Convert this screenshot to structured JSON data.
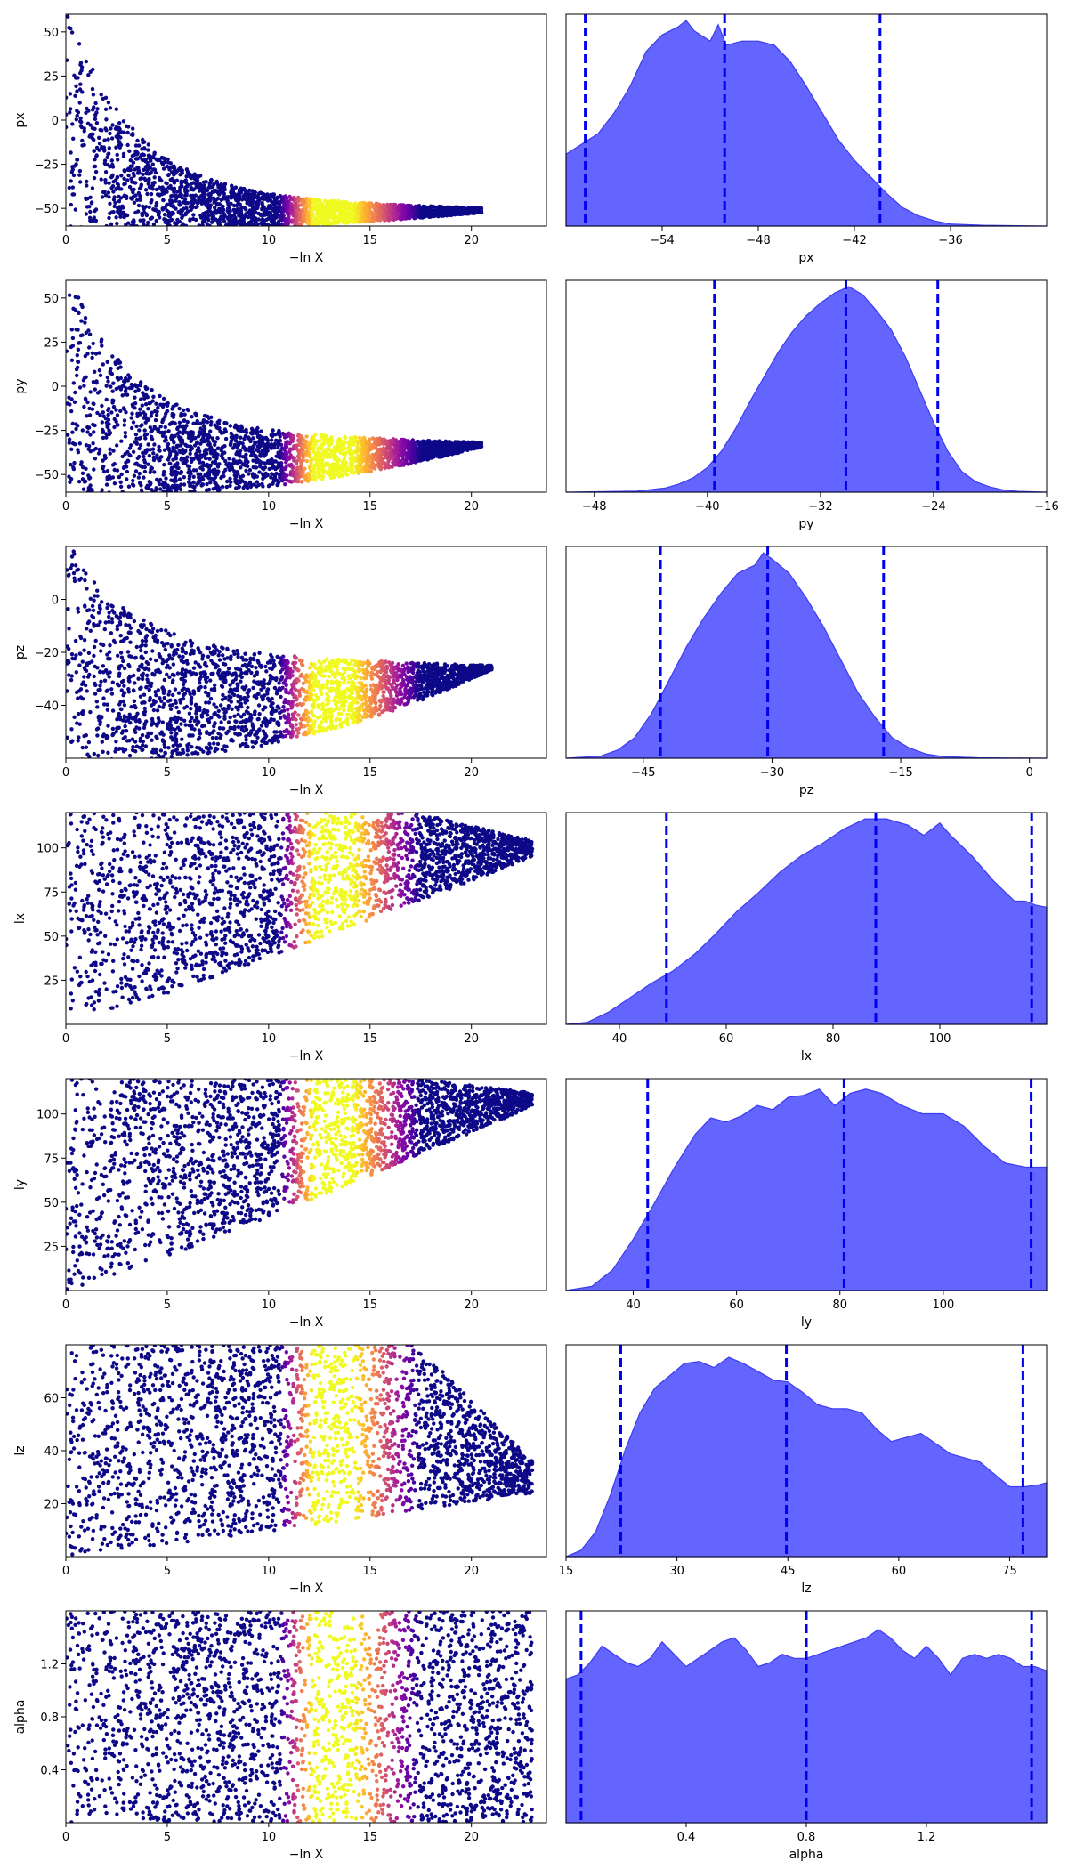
{
  "figure": {
    "xlabel_left": "−ln X"
  },
  "chart_data": [
    {
      "type": "scatter",
      "variable": "px",
      "xlabel": "−ln X",
      "ylabel": "px",
      "xlim": [
        0,
        23.7
      ],
      "ylim": [
        -60,
        60
      ],
      "xticks": [
        0,
        5,
        10,
        15,
        20
      ],
      "yticks": [
        50,
        25,
        0,
        -25,
        -50
      ],
      "ytick_labels": [
        "50",
        "25",
        "0",
        "−25",
        "−50"
      ],
      "colormap": "plasma",
      "points_shape": {
        "top_left": 60,
        "converge_x": 20.5,
        "converge_y": -50
      }
    },
    {
      "type": "area",
      "variable": "px",
      "xlabel": "px",
      "xlim": [
        -60,
        -30
      ],
      "xticks": [
        -54,
        -48,
        -42,
        -36
      ],
      "xtick_labels": [
        "−54",
        "−48",
        "−42",
        "−36"
      ],
      "quantile_lines": [
        -58.8,
        -50.1,
        -40.4
      ],
      "density": [
        [
          -60,
          0.35
        ],
        [
          -59,
          0.4
        ],
        [
          -58,
          0.45
        ],
        [
          -57,
          0.55
        ],
        [
          -56,
          0.68
        ],
        [
          -55,
          0.85
        ],
        [
          -54,
          0.93
        ],
        [
          -53,
          0.97
        ],
        [
          -52.5,
          1.0
        ],
        [
          -52,
          0.95
        ],
        [
          -51,
          0.9
        ],
        [
          -50.5,
          0.98
        ],
        [
          -50,
          0.88
        ],
        [
          -49,
          0.9
        ],
        [
          -48,
          0.9
        ],
        [
          -47,
          0.88
        ],
        [
          -46,
          0.8
        ],
        [
          -45,
          0.68
        ],
        [
          -44,
          0.55
        ],
        [
          -43,
          0.42
        ],
        [
          -42,
          0.32
        ],
        [
          -41,
          0.24
        ],
        [
          -40,
          0.16
        ],
        [
          -39,
          0.09
        ],
        [
          -38,
          0.05
        ],
        [
          -37,
          0.025
        ],
        [
          -36,
          0.01
        ],
        [
          -34,
          0.004
        ],
        [
          -30,
          0
        ]
      ]
    },
    {
      "type": "scatter",
      "variable": "py",
      "xlabel": "−ln X",
      "ylabel": "py",
      "xlim": [
        0,
        23.7
      ],
      "ylim": [
        -60,
        60
      ],
      "xticks": [
        0,
        5,
        10,
        15,
        20
      ],
      "yticks": [
        50,
        25,
        0,
        -25,
        -50
      ],
      "ytick_labels": [
        "50",
        "25",
        "0",
        "−25",
        "−50"
      ],
      "colormap": "plasma",
      "points_shape": {
        "top_left": 60,
        "converge_x": 20.5,
        "converge_y": -32
      }
    },
    {
      "type": "area",
      "variable": "py",
      "xlabel": "py",
      "xlim": [
        -50,
        -16
      ],
      "xticks": [
        -48,
        -40,
        -32,
        -24,
        -16
      ],
      "xtick_labels": [
        "−48",
        "−40",
        "−32",
        "−24",
        "−16"
      ],
      "quantile_lines": [
        -39.5,
        -30.2,
        -23.7
      ],
      "density": [
        [
          -50,
          0
        ],
        [
          -45,
          0.005
        ],
        [
          -43,
          0.02
        ],
        [
          -42,
          0.04
        ],
        [
          -41,
          0.07
        ],
        [
          -40,
          0.12
        ],
        [
          -39,
          0.2
        ],
        [
          -38,
          0.31
        ],
        [
          -37,
          0.44
        ],
        [
          -36,
          0.56
        ],
        [
          -35,
          0.68
        ],
        [
          -34,
          0.78
        ],
        [
          -33,
          0.86
        ],
        [
          -32,
          0.92
        ],
        [
          -31,
          0.97
        ],
        [
          -30,
          1.0
        ],
        [
          -29,
          0.96
        ],
        [
          -28,
          0.88
        ],
        [
          -27,
          0.79
        ],
        [
          -26,
          0.66
        ],
        [
          -25,
          0.5
        ],
        [
          -24,
          0.34
        ],
        [
          -23,
          0.2
        ],
        [
          -22,
          0.1
        ],
        [
          -21,
          0.05
        ],
        [
          -20,
          0.025
        ],
        [
          -19,
          0.01
        ],
        [
          -18,
          0.004
        ],
        [
          -16,
          0
        ]
      ]
    },
    {
      "type": "scatter",
      "variable": "pz",
      "xlabel": "−ln X",
      "ylabel": "pz",
      "xlim": [
        0,
        23.7
      ],
      "ylim": [
        -60,
        20
      ],
      "xticks": [
        0,
        5,
        10,
        15,
        20
      ],
      "yticks": [
        0,
        -20,
        -40
      ],
      "ytick_labels": [
        "0",
        "−20",
        "−40"
      ],
      "colormap": "plasma",
      "points_shape": {
        "top_left": 20,
        "converge_x": 21,
        "converge_y": -25
      }
    },
    {
      "type": "area",
      "variable": "pz",
      "xlabel": "pz",
      "xlim": [
        -54,
        2
      ],
      "xticks": [
        -45,
        -30,
        -15,
        0
      ],
      "xtick_labels": [
        "−45",
        "−30",
        "−15",
        "0"
      ],
      "quantile_lines": [
        -43.0,
        -30.5,
        -17.0
      ],
      "density": [
        [
          -54,
          0
        ],
        [
          -50,
          0.01
        ],
        [
          -48,
          0.04
        ],
        [
          -46,
          0.1
        ],
        [
          -44,
          0.22
        ],
        [
          -42,
          0.38
        ],
        [
          -40,
          0.54
        ],
        [
          -38,
          0.68
        ],
        [
          -36,
          0.8
        ],
        [
          -34,
          0.9
        ],
        [
          -32,
          0.94
        ],
        [
          -31,
          1.0
        ],
        [
          -30,
          0.97
        ],
        [
          -28,
          0.9
        ],
        [
          -26,
          0.78
        ],
        [
          -24,
          0.64
        ],
        [
          -22,
          0.48
        ],
        [
          -20,
          0.32
        ],
        [
          -18,
          0.2
        ],
        [
          -16,
          0.1
        ],
        [
          -14,
          0.05
        ],
        [
          -12,
          0.02
        ],
        [
          -10,
          0.008
        ],
        [
          -6,
          0.002
        ],
        [
          2,
          0
        ]
      ]
    },
    {
      "type": "scatter",
      "variable": "lx",
      "xlabel": "−ln X",
      "ylabel": "lx",
      "xlim": [
        0,
        23.7
      ],
      "ylim": [
        0,
        120
      ],
      "xticks": [
        0,
        5,
        10,
        15,
        20
      ],
      "yticks": [
        100,
        75,
        50,
        25
      ],
      "ytick_labels": [
        "100",
        "75",
        "50",
        "25"
      ],
      "colormap": "plasma",
      "points_shape": {
        "converge_x": 23,
        "converge_y": 100,
        "bottom_edge": "rising"
      }
    },
    {
      "type": "area",
      "variable": "lx",
      "xlabel": "lx",
      "xlim": [
        30,
        120
      ],
      "xticks": [
        40,
        60,
        80,
        100
      ],
      "xtick_labels": [
        "40",
        "60",
        "80",
        "100"
      ],
      "quantile_lines": [
        48.8,
        88.0,
        117.2
      ],
      "density": [
        [
          30,
          0
        ],
        [
          34,
          0.01
        ],
        [
          38,
          0.06
        ],
        [
          42,
          0.13
        ],
        [
          46,
          0.2
        ],
        [
          50,
          0.26
        ],
        [
          54,
          0.34
        ],
        [
          58,
          0.44
        ],
        [
          62,
          0.55
        ],
        [
          66,
          0.64
        ],
        [
          70,
          0.74
        ],
        [
          74,
          0.82
        ],
        [
          78,
          0.88
        ],
        [
          82,
          0.95
        ],
        [
          86,
          1.0
        ],
        [
          90,
          1.0
        ],
        [
          94,
          0.97
        ],
        [
          97,
          0.92
        ],
        [
          100,
          0.98
        ],
        [
          102,
          0.92
        ],
        [
          106,
          0.82
        ],
        [
          110,
          0.7
        ],
        [
          114,
          0.6
        ],
        [
          116,
          0.6
        ],
        [
          118,
          0.58
        ],
        [
          120,
          0.57
        ]
      ]
    },
    {
      "type": "scatter",
      "variable": "ly",
      "xlabel": "−ln X",
      "ylabel": "ly",
      "xlim": [
        0,
        23.7
      ],
      "ylim": [
        0,
        120
      ],
      "xticks": [
        0,
        5,
        10,
        15,
        20
      ],
      "yticks": [
        100,
        75,
        50,
        25
      ],
      "ytick_labels": [
        "100",
        "75",
        "50",
        "25"
      ],
      "colormap": "plasma",
      "points_shape": {
        "converge_x": 23,
        "converge_y": 110,
        "bottom_edge": "rising"
      }
    },
    {
      "type": "area",
      "variable": "ly",
      "xlabel": "ly",
      "xlim": [
        27,
        120
      ],
      "xticks": [
        40,
        60,
        80,
        100
      ],
      "xtick_labels": [
        "40",
        "60",
        "80",
        "100"
      ],
      "quantile_lines": [
        42.8,
        80.8,
        117.0
      ],
      "density": [
        [
          27,
          0
        ],
        [
          32,
          0.02
        ],
        [
          36,
          0.1
        ],
        [
          40,
          0.25
        ],
        [
          44,
          0.42
        ],
        [
          48,
          0.6
        ],
        [
          52,
          0.76
        ],
        [
          55,
          0.84
        ],
        [
          58,
          0.82
        ],
        [
          61,
          0.85
        ],
        [
          64,
          0.9
        ],
        [
          67,
          0.88
        ],
        [
          70,
          0.94
        ],
        [
          73,
          0.95
        ],
        [
          76,
          0.98
        ],
        [
          79,
          0.9
        ],
        [
          82,
          0.96
        ],
        [
          85,
          0.98
        ],
        [
          88,
          0.96
        ],
        [
          92,
          0.9
        ],
        [
          96,
          0.86
        ],
        [
          100,
          0.86
        ],
        [
          104,
          0.8
        ],
        [
          108,
          0.7
        ],
        [
          112,
          0.62
        ],
        [
          116,
          0.6
        ],
        [
          120,
          0.6
        ]
      ]
    },
    {
      "type": "scatter",
      "variable": "lz",
      "xlabel": "−ln X",
      "ylabel": "lz",
      "xlim": [
        0,
        23.7
      ],
      "ylim": [
        0,
        80
      ],
      "xticks": [
        0,
        5,
        10,
        15,
        20
      ],
      "yticks": [
        60,
        40,
        20
      ],
      "ytick_labels": [
        "60",
        "40",
        "20"
      ],
      "colormap": "plasma",
      "points_shape": {
        "converge_x": 23,
        "converge_y": 25,
        "bottom_edge": "rising"
      }
    },
    {
      "type": "area",
      "variable": "lz",
      "xlabel": "lz",
      "xlim": [
        15,
        80
      ],
      "xticks": [
        15,
        30,
        45,
        60,
        75
      ],
      "xtick_labels": [
        "15",
        "30",
        "45",
        "60",
        "75"
      ],
      "quantile_lines": [
        22.4,
        44.8,
        76.8
      ],
      "density": [
        [
          15,
          0
        ],
        [
          17,
          0.03
        ],
        [
          19,
          0.12
        ],
        [
          21,
          0.3
        ],
        [
          23,
          0.52
        ],
        [
          25,
          0.7
        ],
        [
          27,
          0.82
        ],
        [
          29,
          0.88
        ],
        [
          31,
          0.94
        ],
        [
          33,
          0.95
        ],
        [
          35,
          0.92
        ],
        [
          37,
          0.97
        ],
        [
          39,
          0.94
        ],
        [
          41,
          0.9
        ],
        [
          43,
          0.86
        ],
        [
          45,
          0.85
        ],
        [
          47,
          0.8
        ],
        [
          49,
          0.74
        ],
        [
          51,
          0.72
        ],
        [
          53,
          0.72
        ],
        [
          55,
          0.7
        ],
        [
          57,
          0.62
        ],
        [
          59,
          0.56
        ],
        [
          61,
          0.58
        ],
        [
          63,
          0.6
        ],
        [
          65,
          0.55
        ],
        [
          67,
          0.5
        ],
        [
          69,
          0.48
        ],
        [
          71,
          0.46
        ],
        [
          73,
          0.4
        ],
        [
          75,
          0.34
        ],
        [
          77,
          0.34
        ],
        [
          79,
          0.35
        ],
        [
          80,
          0.36
        ]
      ]
    },
    {
      "type": "scatter",
      "variable": "alpha",
      "xlabel": "−ln X",
      "ylabel": "alpha",
      "xlim": [
        0,
        23.7
      ],
      "ylim": [
        0,
        1.6
      ],
      "xticks": [
        0,
        5,
        10,
        15,
        20
      ],
      "yticks": [
        1.2,
        0.8,
        0.4
      ],
      "ytick_labels": [
        "1.2",
        "0.8",
        "0.4"
      ],
      "colormap": "plasma",
      "points_shape": {
        "converge_x": 23,
        "converge_y": 1.0,
        "bottom_edge": "flat"
      }
    },
    {
      "type": "area",
      "variable": "alpha",
      "xlabel": "alpha",
      "xlim": [
        0,
        1.6
      ],
      "xticks": [
        0.4,
        0.8,
        1.2
      ],
      "xtick_labels": [
        "0.4",
        "0.8",
        "1.2"
      ],
      "quantile_lines": [
        0.05,
        0.8,
        1.55
      ],
      "density": [
        [
          0,
          0.7
        ],
        [
          0.04,
          0.72
        ],
        [
          0.08,
          0.78
        ],
        [
          0.12,
          0.86
        ],
        [
          0.16,
          0.82
        ],
        [
          0.2,
          0.78
        ],
        [
          0.24,
          0.76
        ],
        [
          0.28,
          0.8
        ],
        [
          0.32,
          0.88
        ],
        [
          0.36,
          0.82
        ],
        [
          0.4,
          0.76
        ],
        [
          0.44,
          0.8
        ],
        [
          0.48,
          0.84
        ],
        [
          0.52,
          0.88
        ],
        [
          0.56,
          0.9
        ],
        [
          0.6,
          0.84
        ],
        [
          0.64,
          0.76
        ],
        [
          0.68,
          0.78
        ],
        [
          0.72,
          0.82
        ],
        [
          0.76,
          0.8
        ],
        [
          0.8,
          0.8
        ],
        [
          0.84,
          0.82
        ],
        [
          0.88,
          0.84
        ],
        [
          0.92,
          0.86
        ],
        [
          0.96,
          0.88
        ],
        [
          1.0,
          0.9
        ],
        [
          1.04,
          0.94
        ],
        [
          1.08,
          0.9
        ],
        [
          1.12,
          0.84
        ],
        [
          1.16,
          0.8
        ],
        [
          1.2,
          0.86
        ],
        [
          1.24,
          0.8
        ],
        [
          1.28,
          0.72
        ],
        [
          1.32,
          0.8
        ],
        [
          1.36,
          0.82
        ],
        [
          1.4,
          0.8
        ],
        [
          1.44,
          0.82
        ],
        [
          1.48,
          0.8
        ],
        [
          1.52,
          0.76
        ],
        [
          1.56,
          0.76
        ],
        [
          1.6,
          0.74
        ]
      ]
    }
  ]
}
